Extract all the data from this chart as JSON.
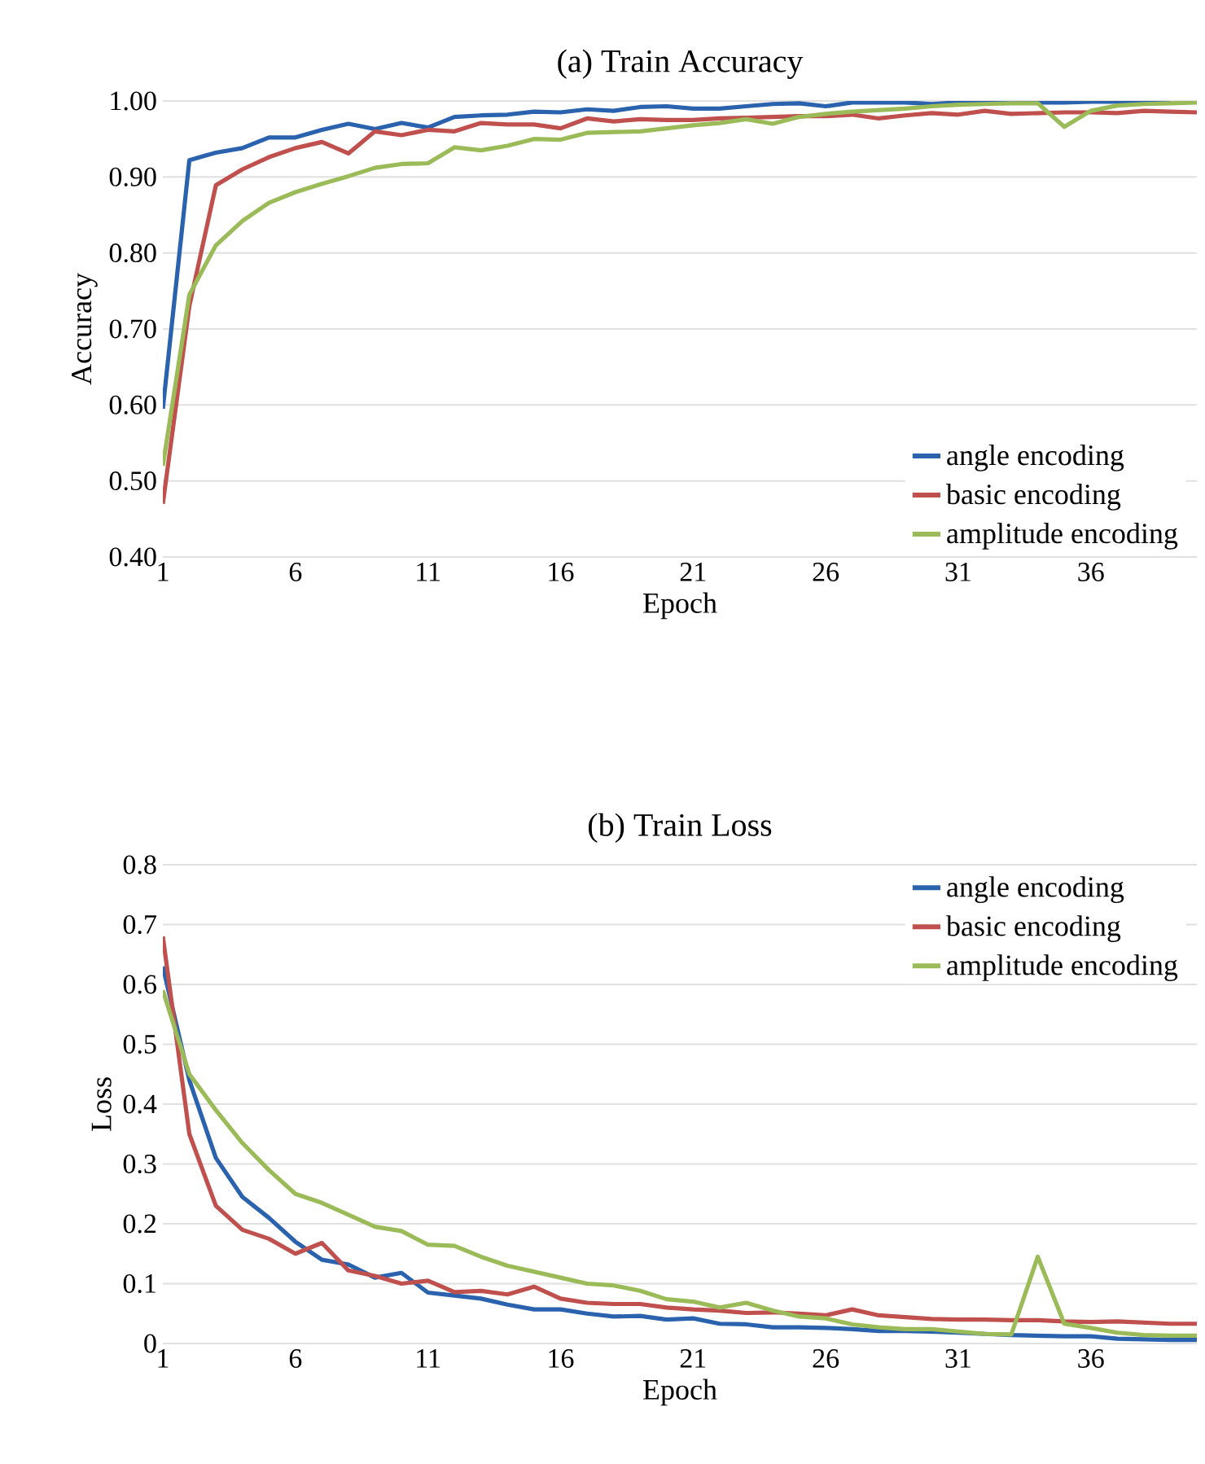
{
  "chart_data": [
    {
      "type": "line",
      "title": "(a) Train Accuracy",
      "xlabel": "Epoch",
      "ylabel": "Accuracy",
      "x": [
        1,
        2,
        3,
        4,
        5,
        6,
        7,
        8,
        9,
        10,
        11,
        12,
        13,
        14,
        15,
        16,
        17,
        18,
        19,
        20,
        21,
        22,
        23,
        24,
        25,
        26,
        27,
        28,
        29,
        30,
        31,
        32,
        33,
        34,
        35,
        36,
        37,
        38,
        39,
        40
      ],
      "xlim": [
        1,
        40
      ],
      "xticks": [
        1,
        6,
        11,
        16,
        21,
        26,
        31,
        36
      ],
      "ylim": [
        0.4,
        1.0
      ],
      "yticks": [
        {
          "value": 0.4,
          "label": "0.40"
        },
        {
          "value": 0.5,
          "label": "0.50"
        },
        {
          "value": 0.6,
          "label": "0.60"
        },
        {
          "value": 0.7,
          "label": "0.70"
        },
        {
          "value": 0.8,
          "label": "0.80"
        },
        {
          "value": 0.9,
          "label": "0.90"
        },
        {
          "value": 1.0,
          "label": "1.00"
        }
      ],
      "grid": "y",
      "legend": "bottom right",
      "series": [
        {
          "name": "angle encoding",
          "color": "#2a62ad",
          "values": [
            0.595,
            0.922,
            0.932,
            0.938,
            0.952,
            0.952,
            0.962,
            0.97,
            0.963,
            0.971,
            0.965,
            0.979,
            0.981,
            0.982,
            0.986,
            0.985,
            0.989,
            0.987,
            0.992,
            0.993,
            0.99,
            0.99,
            0.993,
            0.996,
            0.997,
            0.993,
            0.998,
            0.998,
            0.998,
            0.996,
            0.998,
            0.998,
            0.998,
            0.998,
            0.998,
            0.999,
            0.999,
            1.0,
            1.0,
            null
          ]
        },
        {
          "name": "basic encoding",
          "color": "#c0504d",
          "values": [
            0.47,
            0.73,
            0.889,
            0.91,
            0.926,
            0.938,
            0.946,
            0.931,
            0.96,
            0.955,
            0.962,
            0.96,
            0.971,
            0.969,
            0.969,
            0.964,
            0.977,
            0.973,
            0.976,
            0.975,
            0.975,
            0.977,
            0.978,
            0.979,
            0.98,
            0.98,
            0.982,
            0.977,
            0.981,
            0.984,
            0.982,
            0.987,
            0.983,
            0.984,
            0.985,
            0.985,
            0.984,
            0.987,
            0.986,
            0.985
          ]
        },
        {
          "name": "amplitude encoding",
          "color": "#9bbb59",
          "values": [
            0.52,
            0.745,
            0.81,
            0.842,
            0.866,
            0.88,
            0.891,
            0.901,
            0.912,
            0.917,
            0.918,
            0.939,
            0.935,
            0.941,
            0.95,
            0.949,
            0.958,
            0.959,
            0.96,
            0.964,
            0.968,
            0.971,
            0.976,
            0.97,
            0.979,
            0.983,
            0.986,
            0.988,
            0.99,
            0.993,
            0.995,
            0.996,
            0.997,
            0.997,
            0.966,
            0.987,
            0.994,
            0.996,
            0.997,
            0.998
          ]
        }
      ]
    },
    {
      "type": "line",
      "title": "(b) Train Loss",
      "xlabel": "Epoch",
      "ylabel": "Loss",
      "x": [
        1,
        2,
        3,
        4,
        5,
        6,
        7,
        8,
        9,
        10,
        11,
        12,
        13,
        14,
        15,
        16,
        17,
        18,
        19,
        20,
        21,
        22,
        23,
        24,
        25,
        26,
        27,
        28,
        29,
        30,
        31,
        32,
        33,
        34,
        35,
        36,
        37,
        38,
        39,
        40
      ],
      "xlim": [
        1,
        40
      ],
      "xticks": [
        1,
        6,
        11,
        16,
        21,
        26,
        31,
        36
      ],
      "ylim": [
        0,
        0.8
      ],
      "yticks": [
        0,
        0.1,
        0.2,
        0.3,
        0.4,
        0.5,
        0.6,
        0.7,
        0.8
      ],
      "grid": "y",
      "legend": "top right",
      "series": [
        {
          "name": "angle encoding",
          "color": "#2a62ad",
          "values": [
            0.63,
            0.44,
            0.31,
            0.245,
            0.21,
            0.17,
            0.14,
            0.132,
            0.11,
            0.118,
            0.085,
            0.08,
            0.075,
            0.065,
            0.057,
            0.057,
            0.05,
            0.045,
            0.046,
            0.04,
            0.042,
            0.033,
            0.032,
            0.027,
            0.027,
            0.026,
            0.024,
            0.021,
            0.021,
            0.02,
            0.018,
            0.016,
            0.014,
            0.013,
            0.012,
            0.012,
            0.008,
            0.007,
            0.006,
            0.006
          ]
        },
        {
          "name": "basic encoding",
          "color": "#c0504d",
          "values": [
            0.68,
            0.35,
            0.23,
            0.19,
            0.175,
            0.15,
            0.168,
            0.122,
            0.113,
            0.1,
            0.105,
            0.086,
            0.088,
            0.082,
            0.095,
            0.075,
            0.068,
            0.066,
            0.066,
            0.06,
            0.057,
            0.055,
            0.051,
            0.052,
            0.05,
            0.047,
            0.057,
            0.047,
            0.044,
            0.041,
            0.04,
            0.04,
            0.039,
            0.039,
            0.037,
            0.036,
            0.037,
            0.035,
            0.033,
            0.033
          ]
        },
        {
          "name": "amplitude encoding",
          "color": "#9bbb59",
          "values": [
            0.59,
            0.45,
            0.39,
            0.335,
            0.29,
            0.25,
            0.235,
            0.215,
            0.195,
            0.188,
            0.165,
            0.163,
            0.145,
            0.13,
            0.12,
            0.11,
            0.1,
            0.097,
            0.088,
            0.074,
            0.07,
            0.06,
            0.068,
            0.055,
            0.045,
            0.042,
            0.032,
            0.027,
            0.024,
            0.024,
            0.02,
            0.016,
            0.015,
            0.145,
            0.033,
            0.026,
            0.018,
            0.014,
            0.013,
            0.013
          ]
        }
      ]
    }
  ]
}
